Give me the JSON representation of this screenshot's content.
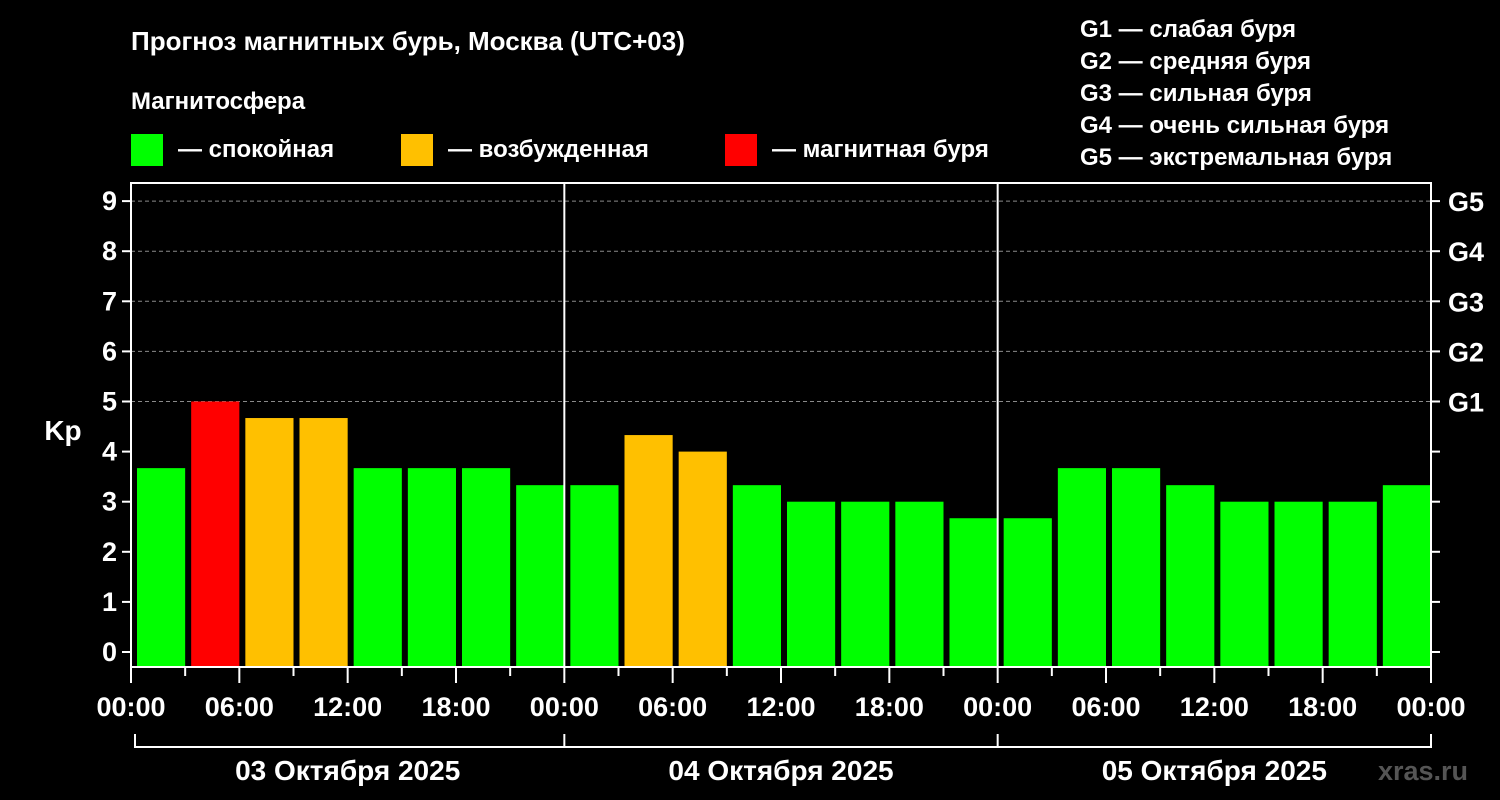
{
  "title": "Прогноз магнитных бурь, Москва (UTC+03)",
  "legend": {
    "heading": "Магнитосфера",
    "items": [
      {
        "label": "— спокойная",
        "color": "#00ff00"
      },
      {
        "label": "— возбужденная",
        "color": "#ffc000"
      },
      {
        "label": "— магнитная буря",
        "color": "#ff0000"
      }
    ]
  },
  "g_legend": [
    "G1 — слабая буря",
    "G2 — средняя буря",
    "G3 — сильная буря",
    "G4 — очень сильная буря",
    "G5 — экстремальная буря"
  ],
  "watermark": "xras.ru",
  "chart_data": {
    "type": "bar",
    "ylabel": "Kp",
    "ylim": [
      0,
      9
    ],
    "yticks": [
      "0",
      "1",
      "2",
      "3",
      "4",
      "5",
      "6",
      "7",
      "8",
      "9"
    ],
    "right_ticks": [
      {
        "value": 5,
        "label": "G1"
      },
      {
        "value": 6,
        "label": "G2"
      },
      {
        "value": 7,
        "label": "G3"
      },
      {
        "value": 8,
        "label": "G4"
      },
      {
        "value": 9,
        "label": "G5"
      }
    ],
    "grid": true,
    "xtick_labels": [
      "00:00",
      "06:00",
      "12:00",
      "18:00",
      "00:00",
      "06:00",
      "12:00",
      "18:00",
      "00:00",
      "06:00",
      "12:00",
      "18:00",
      "00:00"
    ],
    "days": [
      "03 Октября 2025",
      "04 Октября 2025",
      "05 Октября 2025"
    ],
    "values": [
      3.67,
      5.0,
      4.67,
      4.67,
      3.67,
      3.67,
      3.67,
      3.33,
      3.33,
      4.33,
      4.0,
      3.33,
      3.0,
      3.0,
      3.0,
      2.67,
      2.67,
      3.67,
      3.67,
      3.33,
      3.0,
      3.0,
      3.0,
      3.33
    ],
    "categories": [
      "quiet",
      "storm",
      "active",
      "active",
      "quiet",
      "quiet",
      "quiet",
      "quiet",
      "quiet",
      "active",
      "active",
      "quiet",
      "quiet",
      "quiet",
      "quiet",
      "quiet",
      "quiet",
      "quiet",
      "quiet",
      "quiet",
      "quiet",
      "quiet",
      "quiet",
      "quiet"
    ],
    "colors": {
      "quiet": "#00ff00",
      "active": "#ffc000",
      "storm": "#ff0000"
    }
  }
}
